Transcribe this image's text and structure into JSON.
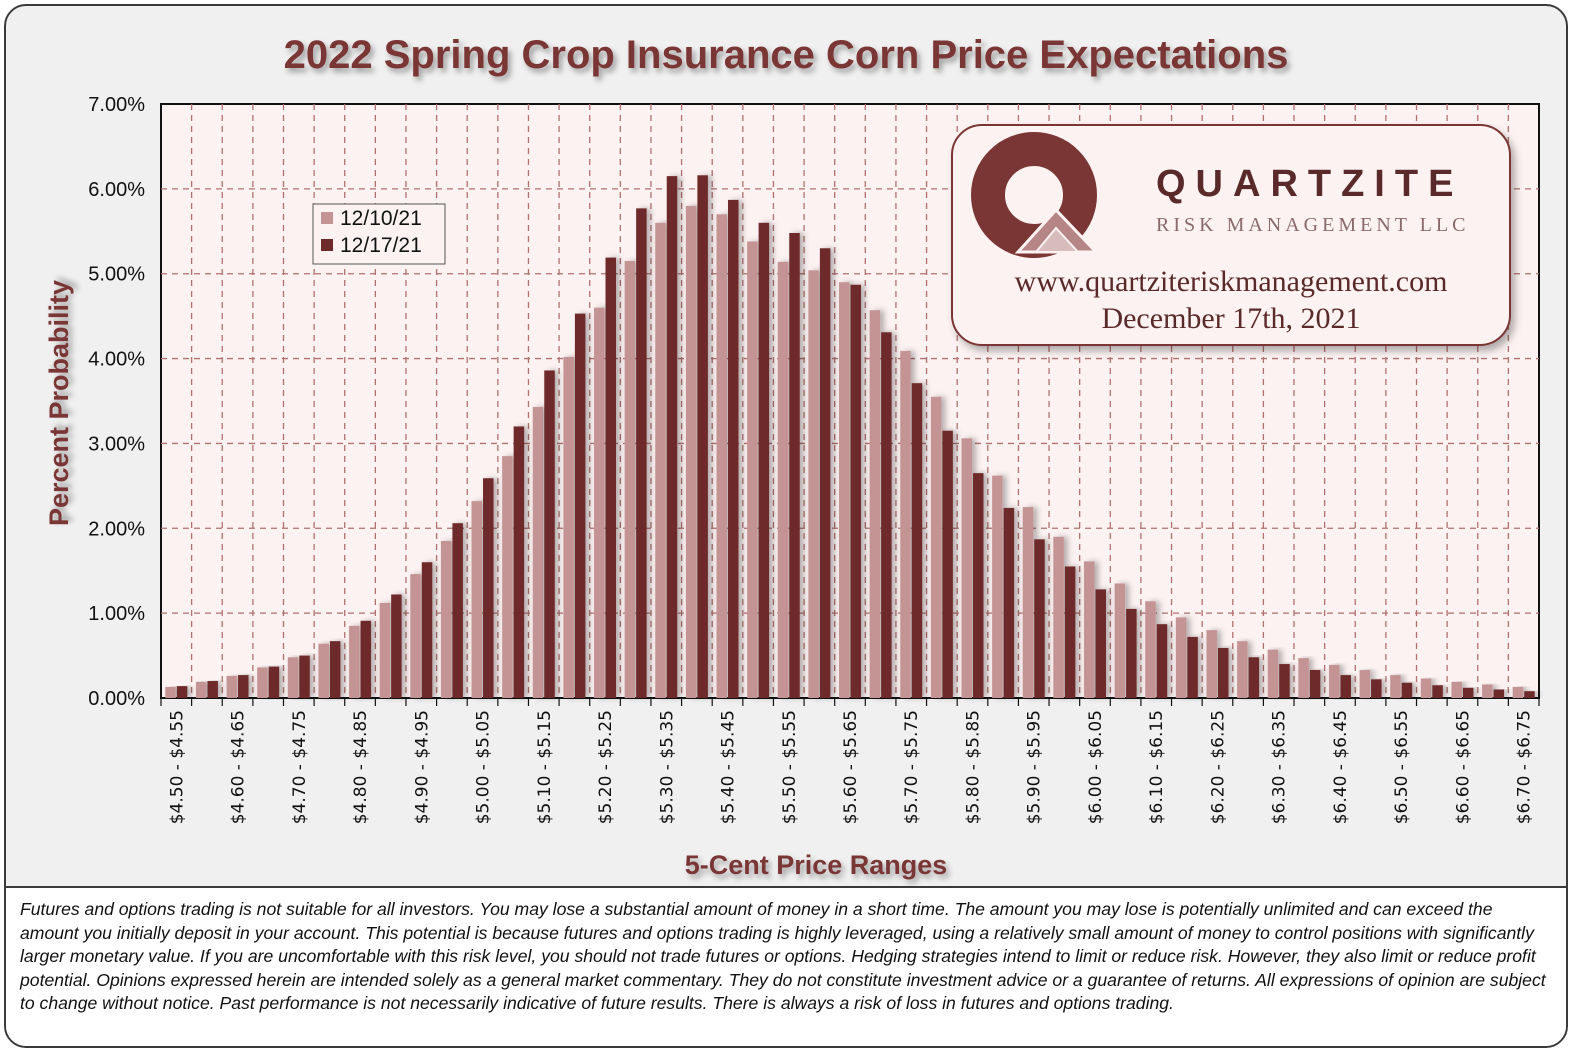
{
  "chart_data": {
    "type": "bar",
    "title": "2022 Spring Crop Insurance Corn Price Expectations",
    "xlabel": "5-Cent Price Ranges",
    "ylabel": "Percent Probability",
    "ylim": [
      0,
      7
    ],
    "yticks": [
      "0.00%",
      "1.00%",
      "2.00%",
      "3.00%",
      "4.00%",
      "5.00%",
      "6.00%",
      "7.00%"
    ],
    "categories": [
      "$4.50 - $4.55",
      "$4.55 - $4.60",
      "$4.60 - $4.65",
      "$4.65 - $4.70",
      "$4.70 - $4.75",
      "$4.75 - $4.80",
      "$4.80 - $4.85",
      "$4.85 - $4.90",
      "$4.90 - $4.95",
      "$4.95 - $5.00",
      "$5.00 - $5.05",
      "$5.05 - $5.10",
      "$5.10 - $5.15",
      "$5.15 - $5.20",
      "$5.20 - $5.25",
      "$5.25 - $5.30",
      "$5.30 - $5.35",
      "$5.35 - $5.40",
      "$5.40 - $5.45",
      "$5.45 - $5.50",
      "$5.50 - $5.55",
      "$5.55 - $5.60",
      "$5.60 - $5.65",
      "$5.65 - $5.70",
      "$5.70 - $5.75",
      "$5.75 - $5.80",
      "$5.80 - $5.85",
      "$5.85 - $5.90",
      "$5.90 - $5.95",
      "$5.95 - $6.00",
      "$6.00 - $6.05",
      "$6.05 - $6.10",
      "$6.10 - $6.15",
      "$6.15 - $6.20",
      "$6.20 - $6.25",
      "$6.25 - $6.30",
      "$6.30 - $6.35",
      "$6.35 - $6.40",
      "$6.40 - $6.45",
      "$6.45 - $6.50",
      "$6.50 - $6.55",
      "$6.55 - $6.60",
      "$6.60 - $6.65",
      "$6.65 - $6.70",
      "$6.70 - $6.75"
    ],
    "xtick_labels": [
      "$4.50 - $4.55",
      "$4.60 - $4.65",
      "$4.70 - $4.75",
      "$4.80 - $4.85",
      "$4.90 - $4.95",
      "$5.00 - $5.05",
      "$5.10 - $5.15",
      "$5.20 - $5.25",
      "$5.30 - $5.35",
      "$5.40 - $5.45",
      "$5.50 - $5.55",
      "$5.60 - $5.65",
      "$5.70 - $5.75",
      "$5.80 - $5.85",
      "$5.90 - $5.95",
      "$6.00 - $6.05",
      "$6.10 - $6.15",
      "$6.20 - $6.25",
      "$6.30 - $6.35",
      "$6.40 - $6.45",
      "$6.50 - $6.55",
      "$6.60 - $6.65",
      "$6.70 - $6.75"
    ],
    "series": [
      {
        "name": "12/10/21",
        "color": "#c49494",
        "values": [
          0.13,
          0.19,
          0.26,
          0.36,
          0.48,
          0.64,
          0.85,
          1.12,
          1.46,
          1.85,
          2.32,
          2.85,
          3.43,
          4.02,
          4.6,
          5.15,
          5.6,
          5.8,
          5.7,
          5.38,
          5.14,
          5.04,
          4.9,
          4.57,
          4.09,
          3.55,
          3.06,
          2.62,
          2.25,
          1.9,
          1.61,
          1.35,
          1.14,
          0.95,
          0.8,
          0.67,
          0.57,
          0.47,
          0.39,
          0.33,
          0.27,
          0.23,
          0.19,
          0.16,
          0.13
        ]
      },
      {
        "name": "12/17/21",
        "color": "#6e2a2a",
        "values": [
          0.14,
          0.2,
          0.27,
          0.37,
          0.5,
          0.67,
          0.91,
          1.22,
          1.6,
          2.06,
          2.59,
          3.2,
          3.86,
          4.53,
          5.19,
          5.77,
          6.15,
          6.16,
          5.87,
          5.6,
          5.48,
          5.3,
          4.87,
          4.31,
          3.71,
          3.15,
          2.65,
          2.24,
          1.87,
          1.55,
          1.28,
          1.05,
          0.87,
          0.72,
          0.59,
          0.48,
          0.4,
          0.33,
          0.27,
          0.22,
          0.18,
          0.15,
          0.12,
          0.1,
          0.08
        ]
      }
    ],
    "legend_position": "upper-left"
  },
  "logo": {
    "name": "QUARTZITE",
    "subtitle": "RISK MANAGEMENT LLC",
    "url": "www.quartziteriskmanagement.com",
    "date": "December 17th, 2021"
  },
  "disclaimer": "Futures and options trading is not suitable for all investors. You may lose a substantial amount of money in a short time. The amount you may lose is potentially unlimited and can exceed the amount you initially deposit in your account. This potential is because futures and options trading is highly leveraged, using a relatively small amount of money to control positions with significantly larger monetary value. If you are uncomfortable with this risk level, you should not trade futures or options. Hedging strategies intend to limit or reduce risk. However, they also limit or reduce profit potential. Opinions expressed herein are intended solely as a general market commentary. They do not constitute investment advice or a guarantee of returns. All expressions of opinion are subject to change without notice. Past performance is not necessarily indicative of future results. There is always a risk of loss in futures and options trading."
}
